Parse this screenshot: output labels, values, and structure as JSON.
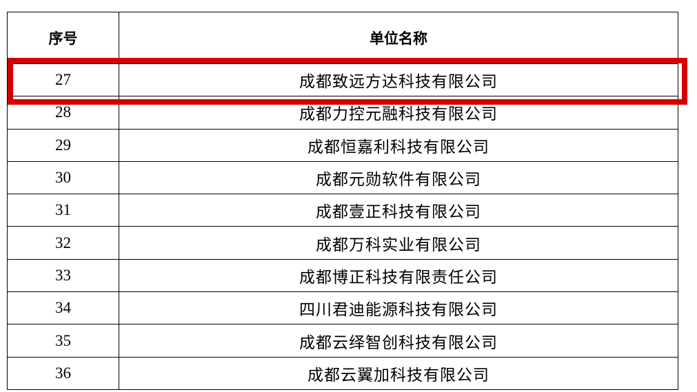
{
  "table": {
    "headers": [
      {
        "label": "序号"
      },
      {
        "label": "单位名称"
      }
    ],
    "rows": [
      {
        "no": "27",
        "name": "成都致远方达科技有限公司",
        "highlighted": true
      },
      {
        "no": "28",
        "name": "成都力控元融科技有限公司",
        "highlighted": false
      },
      {
        "no": "29",
        "name": "成都恒嘉利科技有限公司",
        "highlighted": false
      },
      {
        "no": "30",
        "name": "成都元勋软件有限公司",
        "highlighted": false
      },
      {
        "no": "31",
        "name": "成都壹正科技有限公司",
        "highlighted": false
      },
      {
        "no": "32",
        "name": "成都万科实业有限公司",
        "highlighted": false
      },
      {
        "no": "33",
        "name": "成都博正科技有限责任公司",
        "highlighted": false
      },
      {
        "no": "34",
        "name": "四川君迪能源科技有限公司",
        "highlighted": false
      },
      {
        "no": "35",
        "name": "成都云绎智创科技有限公司",
        "highlighted": false
      },
      {
        "no": "36",
        "name": "成都云翼加科技有限公司",
        "highlighted": false
      }
    ]
  },
  "highlight": {
    "row_no": "27",
    "border_color": "#d40000"
  },
  "colors": {
    "table_border": "#000000",
    "text": "#000000",
    "background": "#ffffff"
  }
}
